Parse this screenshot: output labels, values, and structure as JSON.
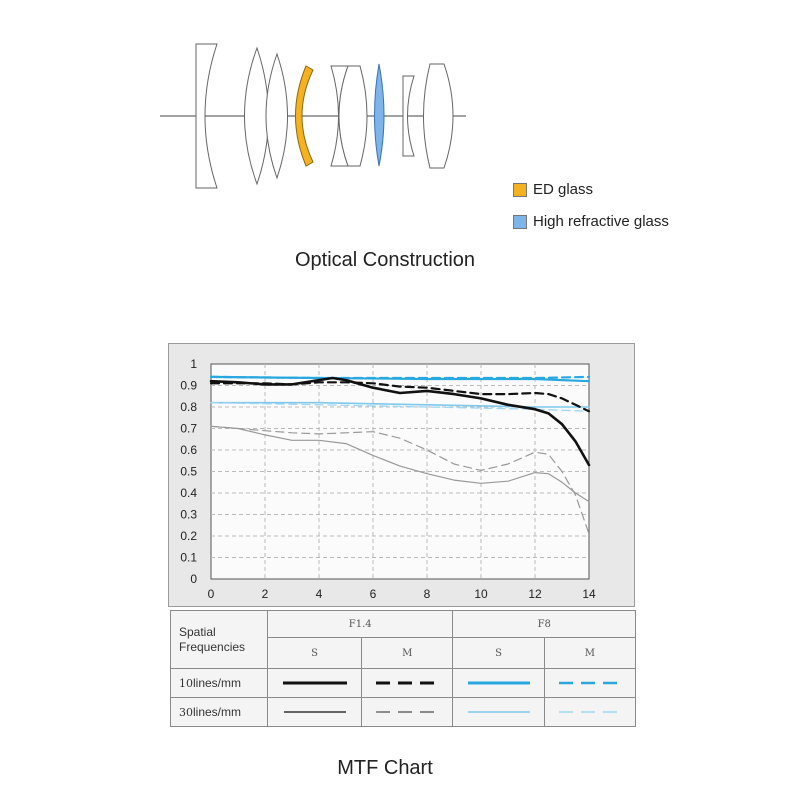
{
  "optical": {
    "caption": "Optical Construction",
    "legend": [
      {
        "label": "ED glass",
        "color": "#f4b223"
      },
      {
        "label": "High refractive glass",
        "color": "#7db4ea"
      }
    ]
  },
  "mtf": {
    "caption": "MTF Chart",
    "table": {
      "title_line1": "Spatial",
      "title_line2": "Frequencies",
      "aperture_a": "F1.4",
      "aperture_b": "F8",
      "col_s": "S",
      "col_m": "M",
      "row1_num": "10",
      "row1_unit": "lines/mm",
      "row2_num": "30",
      "row2_unit": "lines/mm"
    }
  },
  "chart_data": {
    "type": "line",
    "xlim": [
      0,
      14
    ],
    "ylim": [
      0,
      1
    ],
    "xticks": [
      0,
      2,
      4,
      6,
      8,
      10,
      12,
      14
    ],
    "yticks": [
      0,
      0.1,
      0.2,
      0.3,
      0.4,
      0.5,
      0.6,
      0.7,
      0.8,
      0.9,
      1
    ],
    "ytick_labels": [
      "0",
      "0.1",
      "0.2",
      "0.3",
      "0.4",
      "0.5",
      "0.6",
      "0.7",
      "0.8",
      "0.9",
      "1"
    ],
    "grid": true,
    "series": [
      {
        "color": "#7ec8ec",
        "style": "solid",
        "width": 1.6,
        "x": [
          0,
          4,
          8,
          12,
          14
        ],
        "y": [
          0.82,
          0.82,
          0.81,
          0.8,
          0.8
        ]
      },
      {
        "color": "#9fd6f2",
        "style": "dashed",
        "width": 1.3,
        "x": [
          0,
          4,
          8,
          12,
          14
        ],
        "y": [
          0.82,
          0.81,
          0.8,
          0.79,
          0.78
        ]
      },
      {
        "color": "#29a8e0",
        "style": "solid",
        "width": 2.2,
        "x": [
          0,
          4,
          8,
          12,
          14
        ],
        "y": [
          0.94,
          0.935,
          0.93,
          0.93,
          0.92
        ]
      },
      {
        "color": "#29a8e0",
        "style": "dashed",
        "width": 2.2,
        "x": [
          0,
          4,
          8,
          12,
          14
        ],
        "y": [
          0.94,
          0.935,
          0.935,
          0.935,
          0.94
        ]
      },
      {
        "color": "#999999",
        "style": "solid",
        "width": 1.2,
        "x": [
          0,
          1,
          2,
          3,
          4,
          5,
          6,
          7,
          8,
          9,
          10,
          11,
          12,
          12.5,
          13,
          13.5,
          14
        ],
        "y": [
          0.71,
          0.7,
          0.67,
          0.645,
          0.645,
          0.63,
          0.575,
          0.525,
          0.49,
          0.46,
          0.445,
          0.455,
          0.495,
          0.49,
          0.45,
          0.4,
          0.36
        ]
      },
      {
        "color": "#999999",
        "style": "dashed",
        "width": 1.2,
        "x": [
          0,
          1,
          2,
          3,
          4,
          5,
          6,
          7,
          8,
          9,
          10,
          11,
          12,
          12.5,
          13,
          13.5,
          14
        ],
        "y": [
          0.71,
          0.7,
          0.69,
          0.68,
          0.675,
          0.68,
          0.685,
          0.655,
          0.6,
          0.535,
          0.505,
          0.535,
          0.59,
          0.58,
          0.5,
          0.39,
          0.21
        ]
      },
      {
        "color": "#111111",
        "style": "solid",
        "width": 2.6,
        "x": [
          0,
          1,
          2,
          3,
          4,
          4.5,
          5,
          6,
          7,
          8,
          9,
          10,
          11,
          12,
          12.5,
          13,
          13.5,
          14
        ],
        "y": [
          0.92,
          0.915,
          0.905,
          0.905,
          0.925,
          0.935,
          0.925,
          0.89,
          0.865,
          0.875,
          0.86,
          0.84,
          0.81,
          0.79,
          0.77,
          0.72,
          0.64,
          0.53
        ]
      },
      {
        "color": "#111111",
        "style": "dashed",
        "width": 2.2,
        "x": [
          0,
          1,
          2,
          3,
          4,
          5,
          6,
          7,
          8,
          9,
          10,
          11,
          12,
          12.5,
          13,
          13.5,
          14
        ],
        "y": [
          0.91,
          0.91,
          0.91,
          0.905,
          0.915,
          0.915,
          0.91,
          0.895,
          0.89,
          0.875,
          0.86,
          0.86,
          0.865,
          0.86,
          0.84,
          0.81,
          0.78
        ]
      }
    ]
  }
}
